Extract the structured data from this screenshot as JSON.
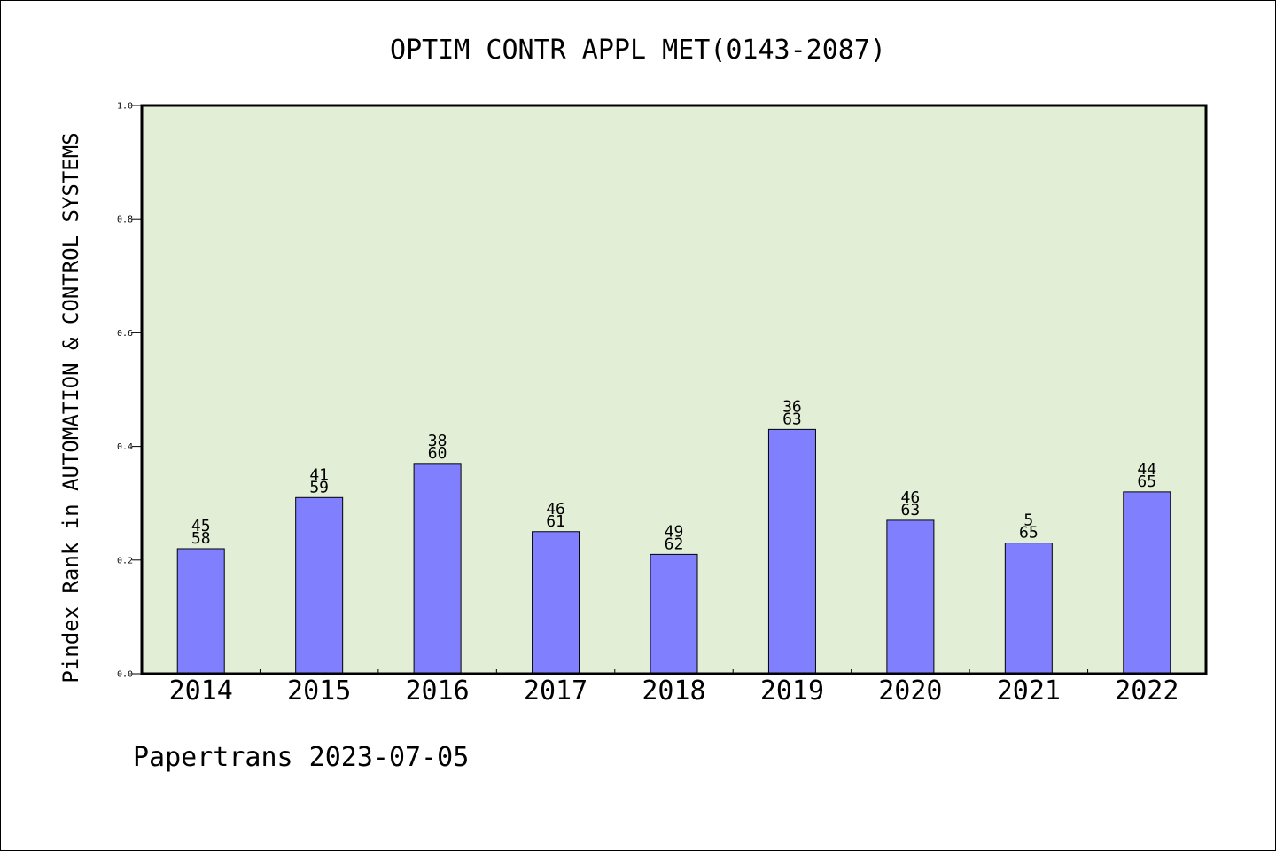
{
  "chart_data": {
    "type": "bar",
    "title": "OPTIM CONTR APPL MET(0143-2087)",
    "ylabel": "Pindex Rank in AUTOMATION & CONTROL SYSTEMS",
    "xlabel": "",
    "categories": [
      "2014",
      "2015",
      "2016",
      "2017",
      "2018",
      "2019",
      "2020",
      "2021",
      "2022"
    ],
    "values": [
      0.22,
      0.31,
      0.37,
      0.25,
      0.21,
      0.43,
      0.27,
      0.23,
      0.32
    ],
    "labels_top": [
      "45",
      "41",
      "38",
      "46",
      "49",
      "36",
      "46",
      "5",
      "44"
    ],
    "labels_bottom": [
      "58",
      "59",
      "60",
      "61",
      "62",
      "63",
      "63",
      "65",
      "65"
    ],
    "ylim": [
      0,
      1.0
    ],
    "yticks": [
      "0.0",
      "0.2",
      "0.4",
      "0.6",
      "0.8",
      "1.0"
    ],
    "grid": false,
    "colors": {
      "plot_background": "#e2efd6",
      "bar_fill": "#8080ff",
      "bar_edge": "#000000"
    }
  },
  "footer": {
    "text": "Papertrans 2023-07-05"
  }
}
